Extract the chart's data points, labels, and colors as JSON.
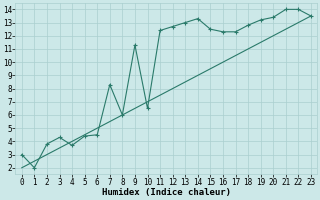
{
  "xlabel": "Humidex (Indice chaleur)",
  "ylabel": "",
  "bg_color": "#cce8e8",
  "grid_color": "#aacfcf",
  "line_color": "#2a7a6a",
  "xlim": [
    -0.5,
    23.5
  ],
  "ylim": [
    1.5,
    14.5
  ],
  "xticks": [
    0,
    1,
    2,
    3,
    4,
    5,
    6,
    7,
    8,
    9,
    10,
    11,
    12,
    13,
    14,
    15,
    16,
    17,
    18,
    19,
    20,
    21,
    22,
    23
  ],
  "yticks": [
    2,
    3,
    4,
    5,
    6,
    7,
    8,
    9,
    10,
    11,
    12,
    13,
    14
  ],
  "line1_x": [
    0,
    1,
    2,
    3,
    4,
    5,
    6,
    7,
    8,
    9,
    10,
    11,
    12,
    13,
    14,
    15,
    16,
    17,
    18,
    19,
    20,
    21,
    22,
    23
  ],
  "line1_y": [
    3.0,
    2.0,
    3.8,
    4.3,
    3.7,
    4.4,
    4.5,
    8.3,
    6.0,
    11.3,
    6.5,
    12.4,
    12.7,
    13.0,
    13.3,
    12.5,
    12.3,
    12.3,
    12.8,
    13.2,
    13.4,
    14.0,
    14.0,
    13.5
  ],
  "line2_x": [
    0,
    1,
    2,
    3,
    4,
    5,
    6,
    7,
    8,
    9,
    10,
    11,
    12,
    13,
    14,
    15,
    16,
    17,
    18,
    19,
    20,
    21,
    22,
    23
  ],
  "line2_y": [
    2.0,
    2.5,
    3.0,
    3.5,
    4.0,
    4.5,
    5.0,
    5.5,
    6.0,
    6.5,
    7.0,
    7.5,
    8.0,
    8.5,
    9.0,
    9.5,
    10.0,
    10.5,
    11.0,
    11.5,
    12.0,
    12.5,
    13.0,
    13.5
  ],
  "tick_fontsize": 5.5,
  "xlabel_fontsize": 6.5
}
